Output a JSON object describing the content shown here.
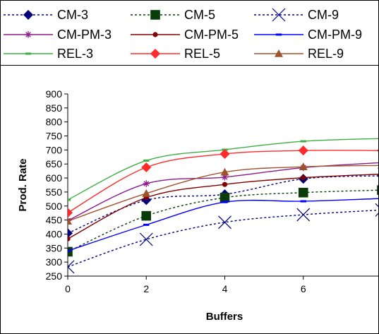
{
  "chart_data": {
    "type": "line",
    "xlabel": "Buffers",
    "ylabel": "Prod. Rate",
    "xlim": [
      0,
      8
    ],
    "ylim": [
      250,
      900
    ],
    "x_ticks": [
      "0",
      "2",
      "4",
      "6",
      "8"
    ],
    "y_ticks": [
      "250",
      "300",
      "350",
      "400",
      "450",
      "500",
      "550",
      "600",
      "650",
      "700",
      "750",
      "800",
      "850",
      "900"
    ],
    "grid": false,
    "legend_position": "top",
    "series": [
      {
        "name": "CM-3",
        "color": "#00007f",
        "dash": "dotted",
        "marker": "diamond",
        "x": [
          0,
          2,
          4,
          6,
          8
        ],
        "y": [
          403,
          521,
          542,
          597,
          608
        ]
      },
      {
        "name": "CM-5",
        "color": "#0a3c0a",
        "dash": "dotted",
        "marker": "square",
        "x": [
          0,
          2,
          4,
          6,
          8
        ],
        "y": [
          337,
          465,
          530,
          548,
          557
        ]
      },
      {
        "name": "CM-9",
        "color": "#00007f",
        "dash": "dotted",
        "marker": "x",
        "x": [
          0,
          2,
          4,
          6,
          8
        ],
        "y": [
          283,
          381,
          442,
          469,
          486
        ]
      },
      {
        "name": "CM-PM-3",
        "color": "#8b1a8b",
        "dash": "solid",
        "marker": "star",
        "x": [
          0,
          2,
          4,
          6,
          8
        ],
        "y": [
          448,
          580,
          603,
          637,
          655
        ]
      },
      {
        "name": "CM-PM-5",
        "color": "#800000",
        "dash": "solid",
        "marker": "circle",
        "x": [
          0,
          2,
          4,
          6,
          8
        ],
        "y": [
          383,
          530,
          577,
          601,
          614
        ]
      },
      {
        "name": "CM-PM-9",
        "color": "#0000ff",
        "dash": "solid",
        "marker": "dash",
        "x": [
          0,
          2,
          4,
          6,
          8
        ],
        "y": [
          340,
          433,
          514,
          517,
          527
        ]
      },
      {
        "name": "REL-3",
        "color": "#3cb043",
        "dash": "solid",
        "marker": "dash",
        "x": [
          0,
          2,
          4,
          6,
          8
        ],
        "y": [
          522,
          662,
          701,
          731,
          741
        ]
      },
      {
        "name": "REL-5",
        "color": "#ff2a2a",
        "dash": "solid",
        "marker": "diamond",
        "x": [
          0,
          2,
          4,
          6,
          8
        ],
        "y": [
          476,
          638,
          686,
          698,
          698
        ]
      },
      {
        "name": "REL-9",
        "color": "#a0522d",
        "dash": "solid",
        "marker": "triangle",
        "x": [
          0,
          2,
          4,
          6,
          8
        ],
        "y": [
          446,
          545,
          621,
          640,
          645
        ]
      }
    ]
  }
}
